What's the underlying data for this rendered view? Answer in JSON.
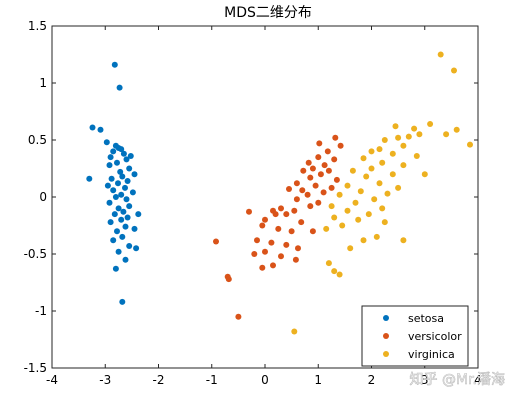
{
  "watermark": "知乎 @Mr.潘海",
  "chart_data": {
    "type": "scatter",
    "title": "MDS二维分布",
    "xlabel": "",
    "ylabel": "",
    "xlim": [
      -4,
      4
    ],
    "ylim": [
      -1.5,
      1.5
    ],
    "x_ticks": [
      -4,
      -3,
      -2,
      -1,
      0,
      1,
      2,
      3,
      4
    ],
    "x_tick_labels": [
      "-4",
      "-3",
      "-2",
      "-1",
      "0",
      "1",
      "2",
      "3",
      "4"
    ],
    "y_ticks": [
      -1.5,
      -1,
      -0.5,
      0,
      0.5,
      1,
      1.5
    ],
    "y_tick_labels": [
      "-1.5",
      "-1",
      "-0.5",
      "0",
      "0.5",
      "1",
      "1.5"
    ],
    "grid": false,
    "legend_position": "bottom-right",
    "series": [
      {
        "name": "setosa",
        "color": "#0072bd",
        "points": [
          [
            -2.82,
            1.16
          ],
          [
            -2.73,
            0.96
          ],
          [
            -3.24,
            0.61
          ],
          [
            -3.09,
            0.59
          ],
          [
            -2.97,
            0.48
          ],
          [
            -2.8,
            0.45
          ],
          [
            -2.75,
            0.43
          ],
          [
            -2.7,
            0.42
          ],
          [
            -2.85,
            0.4
          ],
          [
            -2.65,
            0.38
          ],
          [
            -2.52,
            0.36
          ],
          [
            -2.9,
            0.35
          ],
          [
            -2.6,
            0.33
          ],
          [
            -2.78,
            0.3
          ],
          [
            -2.92,
            0.28
          ],
          [
            -2.55,
            0.25
          ],
          [
            -2.72,
            0.22
          ],
          [
            -2.45,
            0.2
          ],
          [
            -2.68,
            0.18
          ],
          [
            -2.88,
            0.16
          ],
          [
            -2.58,
            0.14
          ],
          [
            -3.3,
            0.16
          ],
          [
            -2.76,
            0.12
          ],
          [
            -2.95,
            0.1
          ],
          [
            -2.63,
            0.08
          ],
          [
            -2.85,
            0.06
          ],
          [
            -2.48,
            0.04
          ],
          [
            -2.7,
            0.02
          ],
          [
            -2.8,
            0.0
          ],
          [
            -2.6,
            -0.02
          ],
          [
            -2.92,
            -0.05
          ],
          [
            -2.55,
            -0.08
          ],
          [
            -2.75,
            -0.1
          ],
          [
            -2.66,
            -0.13
          ],
          [
            -2.82,
            -0.15
          ],
          [
            -2.38,
            -0.15
          ],
          [
            -2.58,
            -0.18
          ],
          [
            -2.7,
            -0.2
          ],
          [
            -2.9,
            -0.22
          ],
          [
            -2.62,
            -0.26
          ],
          [
            -2.45,
            -0.28
          ],
          [
            -2.78,
            -0.3
          ],
          [
            -2.68,
            -0.35
          ],
          [
            -2.85,
            -0.38
          ],
          [
            -2.55,
            -0.43
          ],
          [
            -2.42,
            -0.45
          ],
          [
            -2.75,
            -0.48
          ],
          [
            -2.62,
            -0.55
          ],
          [
            -2.8,
            -0.63
          ],
          [
            -2.68,
            -0.92
          ]
        ]
      },
      {
        "name": "versicolor",
        "color": "#d95319",
        "points": [
          [
            1.32,
            0.52
          ],
          [
            1.02,
            0.47
          ],
          [
            1.42,
            0.45
          ],
          [
            1.18,
            0.4
          ],
          [
            1.0,
            0.35
          ],
          [
            1.3,
            0.33
          ],
          [
            0.82,
            0.3
          ],
          [
            1.12,
            0.28
          ],
          [
            0.9,
            0.25
          ],
          [
            1.2,
            0.23
          ],
          [
            0.72,
            0.23
          ],
          [
            1.05,
            0.2
          ],
          [
            0.85,
            0.17
          ],
          [
            1.35,
            0.15
          ],
          [
            0.6,
            0.12
          ],
          [
            0.95,
            0.1
          ],
          [
            1.25,
            0.08
          ],
          [
            0.7,
            0.06
          ],
          [
            0.45,
            0.07
          ],
          [
            1.1,
            0.04
          ],
          [
            0.8,
            0.02
          ],
          [
            0.6,
            -0.02
          ],
          [
            1.0,
            -0.05
          ],
          [
            0.3,
            -0.1
          ],
          [
            0.85,
            -0.08
          ],
          [
            0.55,
            -0.12
          ],
          [
            0.15,
            -0.12
          ],
          [
            0.2,
            -0.15
          ],
          [
            0.4,
            -0.15
          ],
          [
            -0.3,
            -0.13
          ],
          [
            0.0,
            -0.2
          ],
          [
            0.68,
            -0.22
          ],
          [
            -0.05,
            -0.25
          ],
          [
            0.25,
            -0.28
          ],
          [
            0.9,
            -0.3
          ],
          [
            0.5,
            -0.3
          ],
          [
            -0.15,
            -0.38
          ],
          [
            0.12,
            -0.4
          ],
          [
            0.4,
            -0.42
          ],
          [
            0.62,
            -0.45
          ],
          [
            0.0,
            -0.48
          ],
          [
            0.3,
            -0.52
          ],
          [
            -0.2,
            -0.5
          ],
          [
            0.58,
            -0.55
          ],
          [
            0.15,
            -0.6
          ],
          [
            -0.05,
            -0.62
          ],
          [
            -0.92,
            -0.39
          ],
          [
            -0.7,
            -0.7
          ],
          [
            -0.68,
            -0.72
          ],
          [
            -0.5,
            -1.05
          ]
        ]
      },
      {
        "name": "virginica",
        "color": "#edb120",
        "points": [
          [
            3.3,
            1.25
          ],
          [
            3.55,
            1.11
          ],
          [
            3.6,
            0.59
          ],
          [
            3.85,
            0.46
          ],
          [
            3.1,
            0.64
          ],
          [
            2.8,
            0.6
          ],
          [
            2.45,
            0.62
          ],
          [
            2.9,
            0.55
          ],
          [
            2.7,
            0.53
          ],
          [
            2.5,
            0.52
          ],
          [
            2.25,
            0.5
          ],
          [
            3.4,
            0.55
          ],
          [
            2.6,
            0.45
          ],
          [
            2.15,
            0.42
          ],
          [
            2.0,
            0.4
          ],
          [
            2.4,
            0.38
          ],
          [
            2.85,
            0.36
          ],
          [
            1.85,
            0.34
          ],
          [
            2.2,
            0.3
          ],
          [
            2.6,
            0.28
          ],
          [
            2.0,
            0.25
          ],
          [
            1.65,
            0.23
          ],
          [
            2.4,
            0.2
          ],
          [
            3.0,
            0.2
          ],
          [
            1.9,
            0.18
          ],
          [
            2.15,
            0.12
          ],
          [
            1.55,
            0.1
          ],
          [
            2.5,
            0.08
          ],
          [
            1.8,
            0.05
          ],
          [
            2.3,
            0.03
          ],
          [
            1.4,
            0.02
          ],
          [
            2.05,
            -0.02
          ],
          [
            1.7,
            -0.05
          ],
          [
            1.25,
            -0.08
          ],
          [
            2.2,
            -0.1
          ],
          [
            1.55,
            -0.12
          ],
          [
            1.95,
            -0.15
          ],
          [
            1.3,
            -0.18
          ],
          [
            1.75,
            -0.2
          ],
          [
            2.25,
            -0.22
          ],
          [
            1.45,
            -0.25
          ],
          [
            1.15,
            -0.28
          ],
          [
            2.1,
            -0.35
          ],
          [
            1.85,
            -0.38
          ],
          [
            2.6,
            -0.38
          ],
          [
            1.6,
            -0.45
          ],
          [
            1.2,
            -0.58
          ],
          [
            1.3,
            -0.65
          ],
          [
            1.4,
            -0.68
          ],
          [
            0.55,
            -1.18
          ]
        ]
      }
    ]
  }
}
